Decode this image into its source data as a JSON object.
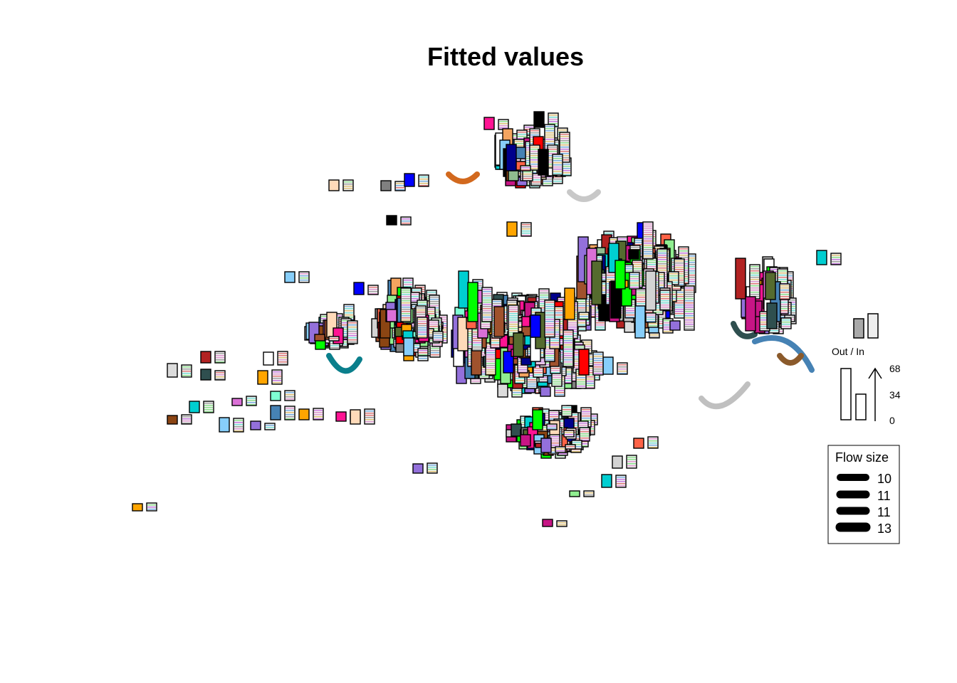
{
  "chart_data": {
    "type": "flow-map",
    "title": "Fitted values",
    "inout_legend": {
      "label": "Out / In",
      "ticks": [
        "68",
        "34",
        "0"
      ],
      "ratio_out": 1.0,
      "ratio_in": 0.5
    },
    "flow_legend": {
      "title": "Flow size",
      "entries": [
        "10",
        "11",
        "11",
        "13"
      ]
    },
    "palette": [
      "#a0522d",
      "#8b4513",
      "#ff6347",
      "#ff0000",
      "#0000ff",
      "#00ced1",
      "#9370db",
      "#ffa500",
      "#808080",
      "#2f4f4f",
      "#7fffd4",
      "#90ee90",
      "#00ff00",
      "#b22222",
      "#4682b4",
      "#d3d3d3",
      "#000000",
      "#ffffff",
      "#ff1493",
      "#da70d6",
      "#8fbc8f",
      "#dcdcdc",
      "#00008b",
      "#f4a460",
      "#87cefa",
      "#556b2f",
      "#ffdab9",
      "#c71585"
    ],
    "stripe_palette": [
      "#e07a7a",
      "#7ab0e0",
      "#8ee08e",
      "#e0c37a",
      "#c87ae0",
      "#7ae0d6",
      "#e09ad0",
      "#a0a0a0"
    ]
  }
}
